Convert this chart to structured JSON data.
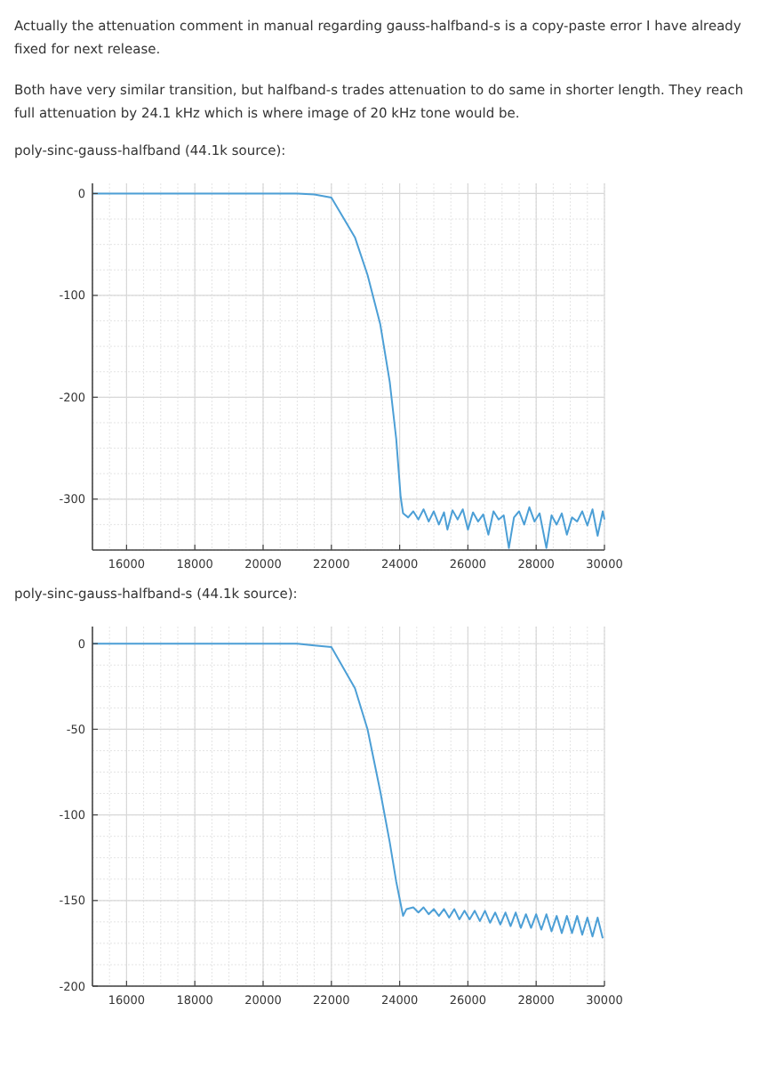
{
  "chart_data": [
    {
      "type": "line",
      "title": "poly-sinc-gauss-halfband (44.1k source):",
      "annotations": [
        "Actually the attenuation comment in manual regarding gauss-halfband-s is a copy-paste error I have already fixed for next release.",
        "Both have very similar transition, but halfband-s trades attenuation to do same in shorter length. They reach full attenuation by 24.1 kHz which is where image of 20 kHz tone would be."
      ],
      "xlim": [
        15000,
        30000
      ],
      "xticks": [
        16000,
        18000,
        20000,
        22000,
        24000,
        26000,
        28000,
        30000
      ],
      "ylim": [
        -350,
        10
      ],
      "yticks": [
        0,
        -100,
        -200,
        -300
      ],
      "grid": true,
      "series": [
        {
          "color": "#4c9fd6",
          "x": [
            15000,
            18000,
            21000,
            21500,
            22000,
            22690,
            23060,
            23430,
            23710,
            23900,
            24030,
            24100,
            24250,
            24400,
            24550,
            24700,
            24850,
            25000,
            25150,
            25300,
            25400,
            25550,
            25700,
            25850,
            26000,
            26150,
            26300,
            26450,
            26600,
            26750,
            26900,
            27050,
            27200,
            27350,
            27500,
            27650,
            27800,
            27950,
            28100,
            28300,
            28450,
            28600,
            28750,
            28900,
            29050,
            29200,
            29350,
            29500,
            29650,
            29800,
            29950,
            30000
          ],
          "values": [
            0,
            0,
            0,
            -1,
            -4,
            -43,
            -80,
            -128,
            -185,
            -241,
            -298,
            -314,
            -318,
            -312,
            -320,
            -310,
            -322,
            -312,
            -325,
            -313,
            -330,
            -311,
            -320,
            -310,
            -330,
            -313,
            -322,
            -315,
            -335,
            -312,
            -320,
            -316,
            -348,
            -318,
            -312,
            -325,
            -308,
            -322,
            -314,
            -348,
            -316,
            -325,
            -314,
            -335,
            -318,
            -322,
            -312,
            -326,
            -310,
            -336,
            -312,
            -320
          ]
        }
      ]
    },
    {
      "type": "line",
      "title": "poly-sinc-gauss-halfband-s (44.1k source):",
      "xlim": [
        15000,
        30000
      ],
      "xticks": [
        16000,
        18000,
        20000,
        22000,
        24000,
        26000,
        28000,
        30000
      ],
      "ylim": [
        -200,
        10
      ],
      "yticks": [
        0,
        -50,
        -100,
        -150,
        -200
      ],
      "grid": true,
      "series": [
        {
          "color": "#4c9fd6",
          "x": [
            15000,
            18000,
            21000,
            21500,
            22000,
            22690,
            23060,
            23430,
            23710,
            23900,
            24100,
            24200,
            24400,
            24550,
            24700,
            24850,
            25000,
            25150,
            25300,
            25450,
            25600,
            25750,
            25900,
            26050,
            26200,
            26350,
            26500,
            26650,
            26800,
            26950,
            27100,
            27250,
            27400,
            27550,
            27700,
            27850,
            28000,
            28150,
            28300,
            28450,
            28600,
            28750,
            28900,
            29050,
            29200,
            29350,
            29500,
            29650,
            29800,
            29950
          ],
          "values": [
            0,
            0,
            0,
            -1,
            -2,
            -26,
            -50,
            -86,
            -116,
            -139,
            -159,
            -155,
            -154,
            -157,
            -154,
            -158,
            -155,
            -159,
            -155,
            -160,
            -155,
            -161,
            -156,
            -161,
            -156,
            -162,
            -156,
            -163,
            -157,
            -164,
            -157,
            -165,
            -157,
            -166,
            -158,
            -166,
            -158,
            -167,
            -158,
            -168,
            -159,
            -169,
            -159,
            -169,
            -159,
            -170,
            -160,
            -171,
            -160,
            -172
          ]
        }
      ]
    }
  ]
}
